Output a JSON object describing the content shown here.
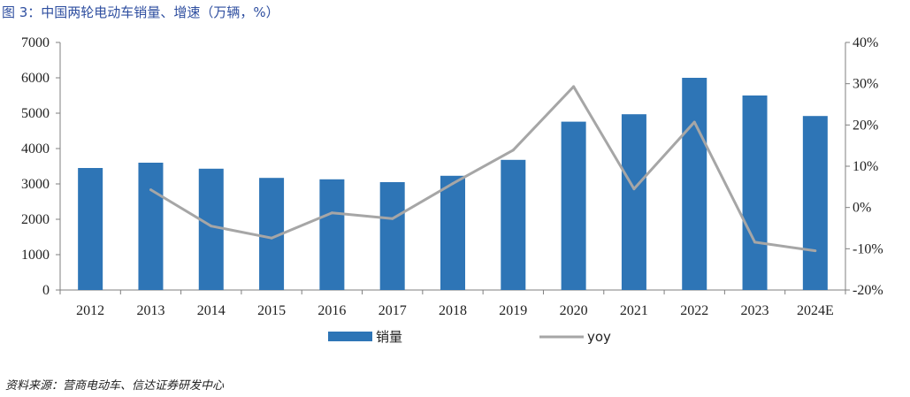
{
  "figure_title": "图 3：中国两轮电动车销量、增速（万辆，%）",
  "source_note": "资料来源：营商电动车、信达证券研发中心",
  "legend": {
    "bar_label": "销量",
    "line_label": "yoy"
  },
  "colors": {
    "bar": "#2e75b6",
    "line": "#a6a6a6",
    "title": "#2f4fa0",
    "axis": "#7f7f7f"
  },
  "chart_data": {
    "type": "bar",
    "categories": [
      "2012",
      "2013",
      "2014",
      "2015",
      "2016",
      "2017",
      "2018",
      "2019",
      "2020",
      "2021",
      "2022",
      "2023",
      "2024E"
    ],
    "series": [
      {
        "name": "销量",
        "type": "bar",
        "axis": "left",
        "values": [
          3450,
          3600,
          3430,
          3170,
          3130,
          3050,
          3230,
          3680,
          4760,
          4970,
          6000,
          5500,
          4920
        ]
      },
      {
        "name": "yoy",
        "type": "line",
        "axis": "right",
        "values": [
          null,
          4.3,
          -4.5,
          -7.4,
          -1.3,
          -2.7,
          5.8,
          13.9,
          29.3,
          4.5,
          20.7,
          -8.4,
          -10.5
        ]
      }
    ],
    "ylim_left": [
      0,
      7000
    ],
    "yticks_left": [
      "0",
      "1000",
      "2000",
      "3000",
      "4000",
      "5000",
      "6000",
      "7000"
    ],
    "ylim_right": [
      -20,
      40
    ],
    "yticks_right": [
      "-20%",
      "-10%",
      "0%",
      "10%",
      "20%",
      "30%",
      "40%"
    ],
    "legend_position": "bottom",
    "grid": false
  }
}
